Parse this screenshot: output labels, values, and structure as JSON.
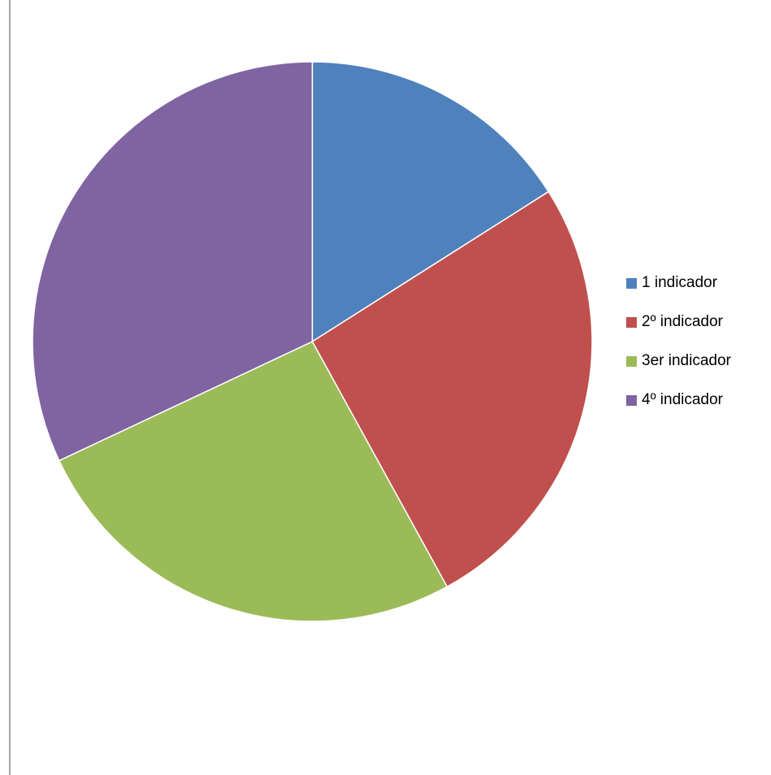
{
  "chart_data": {
    "type": "pie",
    "title": "",
    "slices": [
      {
        "label": "1 indicador",
        "value": 16,
        "color": "#4F81BD"
      },
      {
        "label": "2º indicador",
        "value": 26,
        "color": "#C0504D"
      },
      {
        "label": "3er indicador",
        "value": 26,
        "color": "#9BBB59"
      },
      {
        "label": "4º indicador",
        "value": 32,
        "color": "#8064A2"
      }
    ],
    "start_angle": "12 o'clock",
    "direction": "clockwise",
    "legend_position": "right"
  }
}
